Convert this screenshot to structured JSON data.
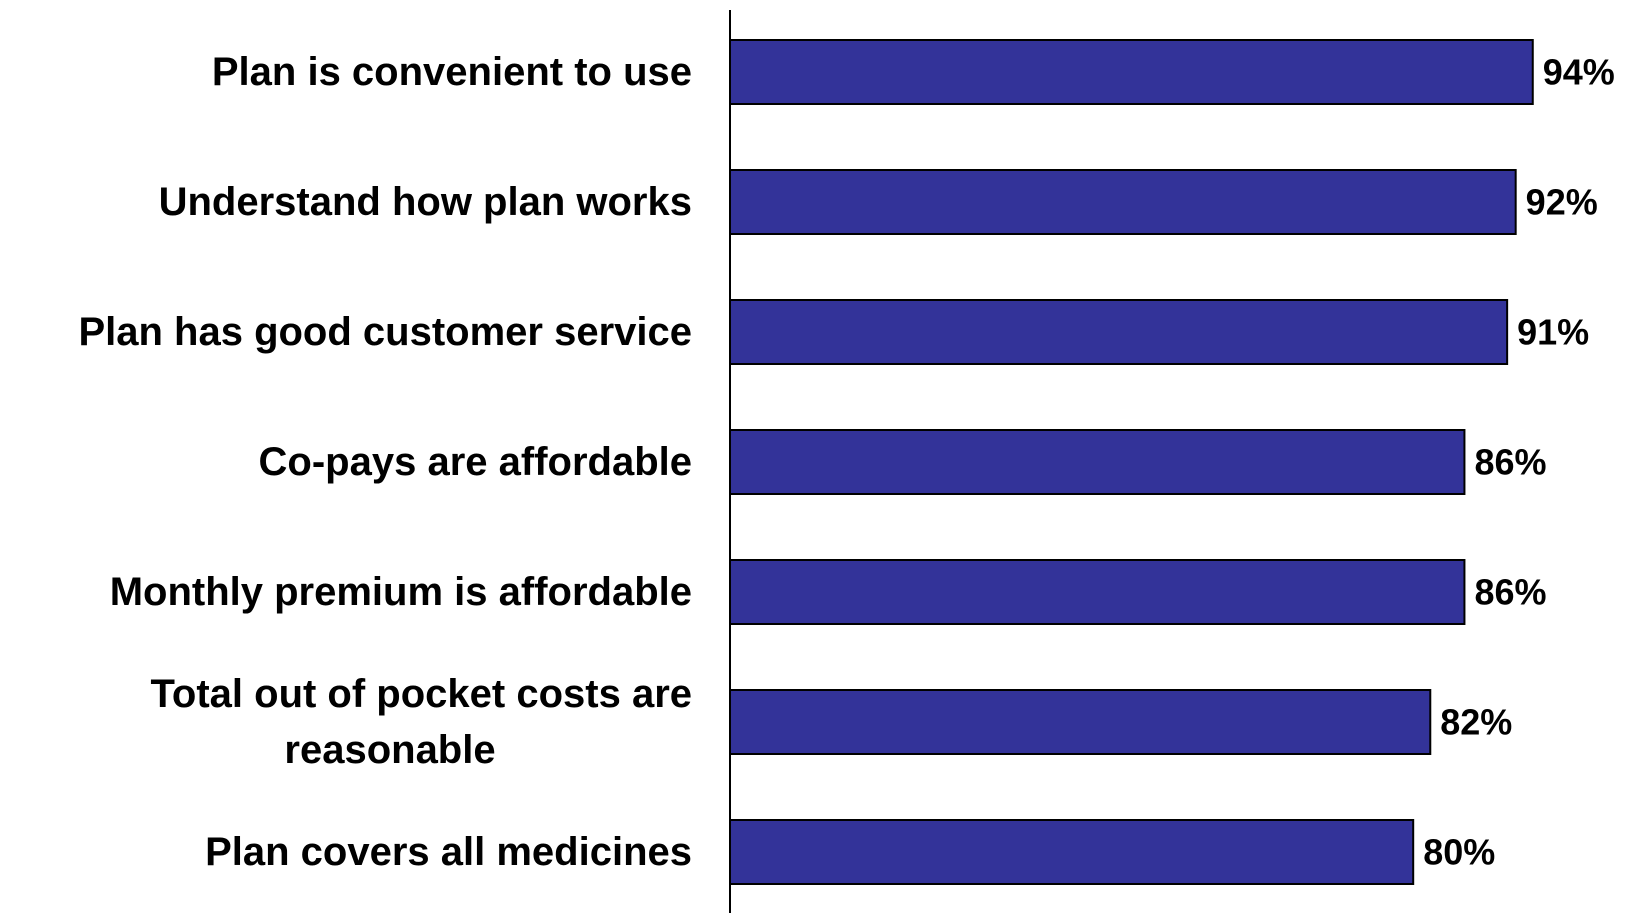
{
  "chart_data": {
    "type": "bar",
    "orientation": "horizontal",
    "categories": [
      "Plan is convenient to use",
      "Understand how plan works",
      "Plan has good customer service",
      "Co-pays are affordable",
      "Monthly premium is affordable",
      "Total out of pocket costs are reasonable",
      "Plan covers all medicines"
    ],
    "category_lines": [
      [
        "Plan is convenient to use"
      ],
      [
        "Understand how plan works"
      ],
      [
        "Plan has good customer service"
      ],
      [
        "Co-pays are affordable"
      ],
      [
        "Monthly premium is affordable"
      ],
      [
        "Total out of pocket costs are",
        "reasonable"
      ],
      [
        "Plan covers all medicines"
      ]
    ],
    "values": [
      94,
      92,
      91,
      86,
      86,
      82,
      80
    ],
    "value_labels": [
      "94%",
      "92%",
      "91%",
      "86%",
      "86%",
      "82%",
      "80%"
    ],
    "xlim": [
      0,
      100
    ],
    "grid": false,
    "title": "",
    "xlabel": "",
    "ylabel": "",
    "colors": {
      "bar_fill": "#333399",
      "bar_stroke": "#000000",
      "axis": "#000000"
    }
  }
}
